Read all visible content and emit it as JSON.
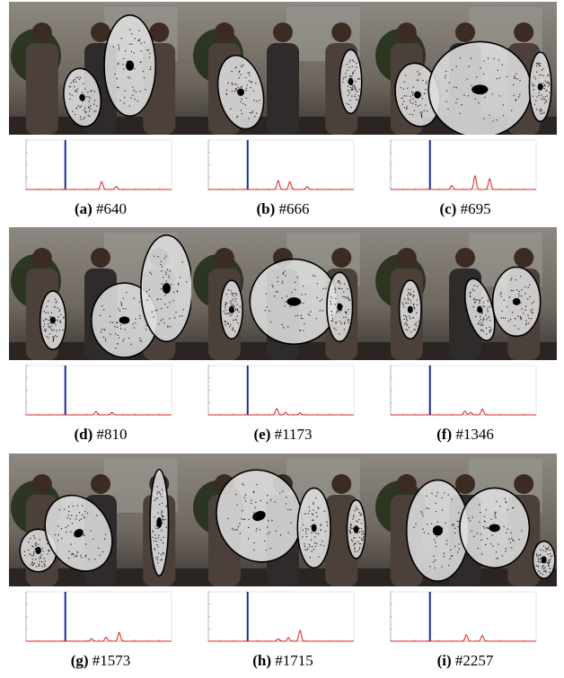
{
  "figure": {
    "panels": [
      {
        "letter": "(a)",
        "frame": "#640",
        "bar": 0.27,
        "peaks": [
          [
            0.52,
            0.16
          ],
          [
            0.62,
            0.06
          ]
        ],
        "ellipses": [
          [
            0.4,
            0.72,
            0.1,
            0.22,
            -8
          ],
          [
            0.66,
            0.48,
            0.14,
            0.38,
            0
          ]
        ]
      },
      {
        "letter": "(b)",
        "frame": "#666",
        "bar": 0.27,
        "peaks": [
          [
            0.48,
            0.18
          ],
          [
            0.56,
            0.16
          ],
          [
            0.68,
            0.06
          ]
        ],
        "ellipses": [
          [
            0.27,
            0.68,
            0.12,
            0.28,
            -12
          ],
          [
            0.87,
            0.6,
            0.06,
            0.24,
            0
          ]
        ]
      },
      {
        "letter": "(c)",
        "frame": "#695",
        "bar": 0.27,
        "peaks": [
          [
            0.42,
            0.08
          ],
          [
            0.58,
            0.28
          ],
          [
            0.68,
            0.22
          ]
        ],
        "ellipses": [
          [
            0.24,
            0.7,
            0.12,
            0.24,
            -10
          ],
          [
            0.58,
            0.66,
            0.28,
            0.36,
            0
          ],
          [
            0.91,
            0.64,
            0.06,
            0.26,
            0
          ]
        ]
      },
      {
        "letter": "(d)",
        "frame": "#810",
        "bar": 0.27,
        "peaks": [
          [
            0.48,
            0.07
          ],
          [
            0.59,
            0.05
          ]
        ],
        "ellipses": [
          [
            0.24,
            0.7,
            0.07,
            0.22,
            0
          ],
          [
            0.63,
            0.7,
            0.18,
            0.28,
            0
          ],
          [
            0.86,
            0.46,
            0.14,
            0.4,
            0
          ]
        ]
      },
      {
        "letter": "(e)",
        "frame": "#1173",
        "bar": 0.27,
        "peaks": [
          [
            0.47,
            0.13
          ],
          [
            0.53,
            0.05
          ],
          [
            0.63,
            0.04
          ]
        ],
        "ellipses": [
          [
            0.22,
            0.62,
            0.06,
            0.22,
            0
          ],
          [
            0.56,
            0.56,
            0.24,
            0.32,
            0
          ],
          [
            0.81,
            0.6,
            0.07,
            0.26,
            0
          ]
        ]
      },
      {
        "letter": "(f)",
        "frame": "#1346",
        "bar": 0.27,
        "peaks": [
          [
            0.51,
            0.08
          ],
          [
            0.55,
            0.05
          ],
          [
            0.63,
            0.12
          ]
        ],
        "ellipses": [
          [
            0.2,
            0.62,
            0.06,
            0.22,
            0
          ],
          [
            0.58,
            0.62,
            0.07,
            0.24,
            -15
          ],
          [
            0.78,
            0.56,
            0.13,
            0.26,
            0
          ]
        ]
      },
      {
        "letter": "(g)",
        "frame": "#1573",
        "bar": 0.27,
        "peaks": [
          [
            0.45,
            0.05
          ],
          [
            0.55,
            0.08
          ],
          [
            0.64,
            0.18
          ]
        ],
        "ellipses": [
          [
            0.16,
            0.73,
            0.1,
            0.16,
            0
          ],
          [
            0.38,
            0.6,
            0.17,
            0.3,
            -30
          ],
          [
            0.82,
            0.52,
            0.05,
            0.4,
            0
          ]
        ]
      },
      {
        "letter": "(h)",
        "frame": "#1715",
        "bar": 0.27,
        "peaks": [
          [
            0.48,
            0.05
          ],
          [
            0.55,
            0.07
          ],
          [
            0.63,
            0.22
          ]
        ],
        "ellipses": [
          [
            0.37,
            0.47,
            0.23,
            0.35,
            -20
          ],
          [
            0.67,
            0.56,
            0.09,
            0.3,
            0
          ],
          [
            0.9,
            0.57,
            0.05,
            0.22,
            0
          ]
        ]
      },
      {
        "letter": "(i)",
        "frame": "#2257",
        "bar": 0.27,
        "peaks": [
          [
            0.52,
            0.13
          ],
          [
            0.63,
            0.12
          ]
        ],
        "ellipses": [
          [
            0.35,
            0.58,
            0.17,
            0.38,
            0
          ],
          [
            0.66,
            0.56,
            0.19,
            0.3,
            0
          ],
          [
            0.93,
            0.8,
            0.06,
            0.14,
            0
          ]
        ]
      }
    ]
  }
}
